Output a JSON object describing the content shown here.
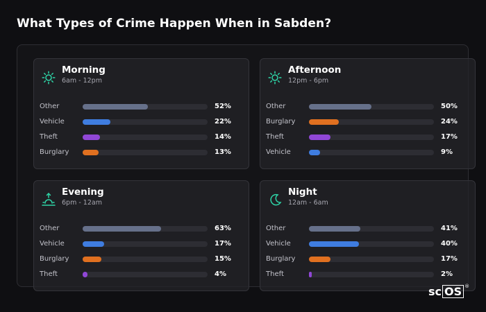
{
  "title": "What Types of Crime Happen When in Sabden?",
  "colors": {
    "Other": "#66708a",
    "Vehicle": "#3f7de0",
    "Theft": "#9047d6",
    "Burglary": "#e07020",
    "icon_accent": "#2ed6a8"
  },
  "chart_data": [
    {
      "type": "bar",
      "title": "Morning",
      "subtitle": "6am - 12pm",
      "icon": "sun-icon",
      "categories": [
        "Other",
        "Vehicle",
        "Theft",
        "Burglary"
      ],
      "values": [
        52,
        22,
        14,
        13
      ],
      "value_labels": [
        "52%",
        "22%",
        "14%",
        "13%"
      ],
      "ylim": [
        0,
        100
      ]
    },
    {
      "type": "bar",
      "title": "Afternoon",
      "subtitle": "12pm - 6pm",
      "icon": "sun-icon",
      "categories": [
        "Other",
        "Burglary",
        "Theft",
        "Vehicle"
      ],
      "values": [
        50,
        24,
        17,
        9
      ],
      "value_labels": [
        "50%",
        "24%",
        "17%",
        "9%"
      ],
      "ylim": [
        0,
        100
      ]
    },
    {
      "type": "bar",
      "title": "Evening",
      "subtitle": "6pm - 12am",
      "icon": "sunset-icon",
      "categories": [
        "Other",
        "Vehicle",
        "Burglary",
        "Theft"
      ],
      "values": [
        63,
        17,
        15,
        4
      ],
      "value_labels": [
        "63%",
        "17%",
        "15%",
        "4%"
      ],
      "ylim": [
        0,
        100
      ]
    },
    {
      "type": "bar",
      "title": "Night",
      "subtitle": "12am - 6am",
      "icon": "moon-icon",
      "categories": [
        "Other",
        "Vehicle",
        "Burglary",
        "Theft"
      ],
      "values": [
        41,
        40,
        17,
        2
      ],
      "value_labels": [
        "41%",
        "40%",
        "17%",
        "2%"
      ],
      "ylim": [
        0,
        100
      ]
    }
  ],
  "logo": {
    "text_left": "sc",
    "text_boxed": "OS",
    "mark": "®"
  }
}
